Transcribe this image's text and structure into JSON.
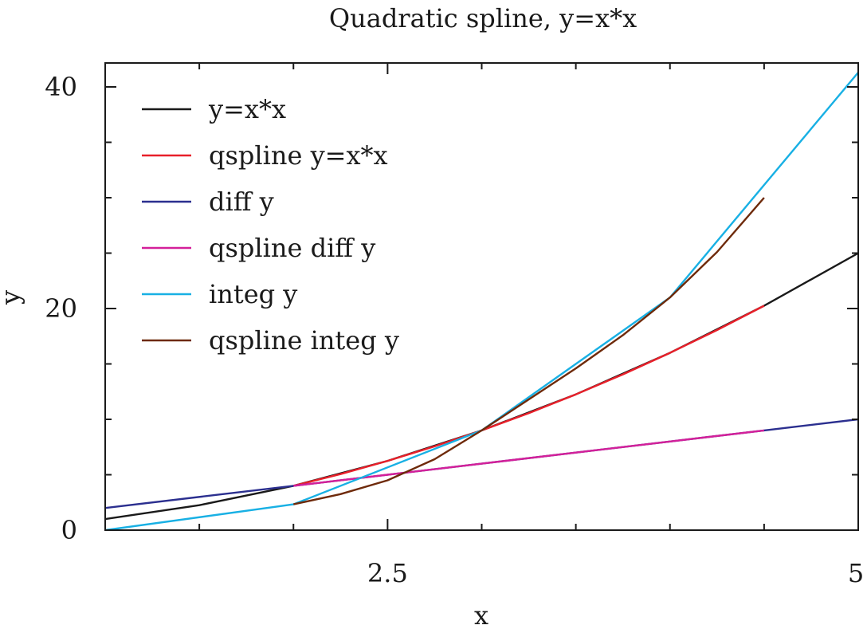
{
  "chart_data": {
    "type": "line",
    "title": "Quadratic spline, y=x*x",
    "xlabel": "x",
    "ylabel": "y",
    "xlim": [
      1,
      5
    ],
    "ylim": [
      0,
      40
    ],
    "x_ticks": [
      {
        "value": 2.5,
        "label": "2.5"
      },
      {
        "value": 5,
        "label": "5"
      }
    ],
    "y_ticks": [
      {
        "value": 0,
        "label": "0"
      },
      {
        "value": 20,
        "label": "20"
      },
      {
        "value": 40,
        "label": "40"
      }
    ],
    "legend_position": "top-left",
    "series": [
      {
        "name": "y=x*x",
        "color": "#1a1a1a",
        "points": [
          [
            1,
            1
          ],
          [
            1.5,
            2.25
          ],
          [
            2,
            4
          ],
          [
            2.5,
            6.25
          ],
          [
            3,
            9
          ],
          [
            3.5,
            12.25
          ],
          [
            4,
            16
          ],
          [
            4.5,
            20.25
          ],
          [
            5,
            25
          ]
        ]
      },
      {
        "name": "qspline y=x*x",
        "color": "#e8202a",
        "points": [
          [
            2,
            4
          ],
          [
            2.25,
            5.06
          ],
          [
            2.5,
            6.25
          ],
          [
            2.75,
            7.56
          ],
          [
            3,
            9
          ],
          [
            3.25,
            10.56
          ],
          [
            3.5,
            12.25
          ],
          [
            3.75,
            14.06
          ],
          [
            4,
            16
          ],
          [
            4.25,
            18.06
          ],
          [
            4.5,
            20.25
          ]
        ]
      },
      {
        "name": "diff y",
        "color": "#2b2f8f",
        "points": [
          [
            1,
            2
          ],
          [
            2,
            4
          ],
          [
            3,
            6
          ],
          [
            4,
            8
          ],
          [
            4.5,
            9
          ],
          [
            5,
            10
          ]
        ]
      },
      {
        "name": "qspline diff y",
        "color": "#d4209a",
        "points": [
          [
            2,
            4
          ],
          [
            2.5,
            5
          ],
          [
            3,
            6
          ],
          [
            3.5,
            7
          ],
          [
            4,
            8
          ],
          [
            4.5,
            9
          ]
        ]
      },
      {
        "name": "integ y",
        "color": "#18b0e4",
        "points": [
          [
            1,
            0
          ],
          [
            2,
            2.33
          ],
          [
            3,
            9.0
          ],
          [
            4,
            21.0
          ],
          [
            5,
            41.3
          ]
        ]
      },
      {
        "name": "qspline integ y",
        "color": "#6e2a0a",
        "points": [
          [
            2,
            2.33
          ],
          [
            2.25,
            3.25
          ],
          [
            2.5,
            4.5
          ],
          [
            2.75,
            6.4
          ],
          [
            3,
            9.0
          ],
          [
            3.25,
            11.8
          ],
          [
            3.5,
            14.6
          ],
          [
            3.75,
            17.6
          ],
          [
            4,
            21.0
          ],
          [
            4.25,
            25.1
          ],
          [
            4.5,
            30.0
          ]
        ]
      }
    ]
  }
}
